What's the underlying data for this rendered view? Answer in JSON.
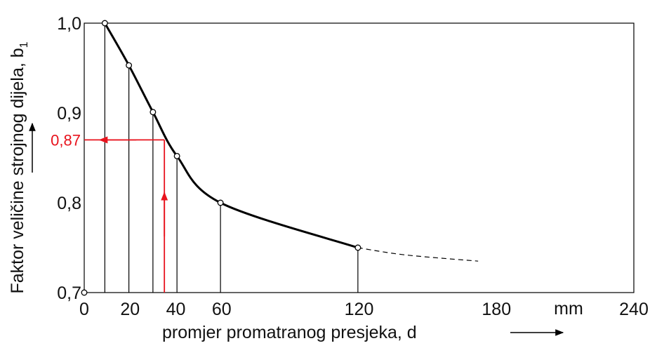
{
  "chart_data": {
    "type": "line",
    "ylabel": "Faktor veličine strojnog dijela, b",
    "ylabel_subscript": "1",
    "xlabel": "promjer promatranog presjeka, d",
    "x_unit": "mm",
    "xlim": [
      0,
      240
    ],
    "ylim": [
      0.7,
      1.0
    ],
    "x_ticks": [
      "0",
      "20",
      "40",
      "60",
      "120",
      "180",
      "240"
    ],
    "y_ticks": [
      "0,7",
      "0,8",
      "0,9",
      "1,0"
    ],
    "grid": false,
    "curve_points": [
      {
        "x": 9,
        "y": 1.0
      },
      {
        "x": 19.5,
        "y": 0.953
      },
      {
        "x": 30,
        "y": 0.901
      },
      {
        "x": 40.5,
        "y": 0.852
      },
      {
        "x": 59.5,
        "y": 0.8
      },
      {
        "x": 119.5,
        "y": 0.75
      }
    ],
    "extrapolation": [
      {
        "x": 119.5,
        "y": 0.75
      },
      {
        "x": 140,
        "y": 0.742
      },
      {
        "x": 172,
        "y": 0.735
      }
    ],
    "reading": {
      "x": 35,
      "y": 0.87,
      "label": "0,87",
      "color": "#e8131d"
    },
    "colors": {
      "curve": "#000000",
      "reading": "#e8131d"
    }
  }
}
